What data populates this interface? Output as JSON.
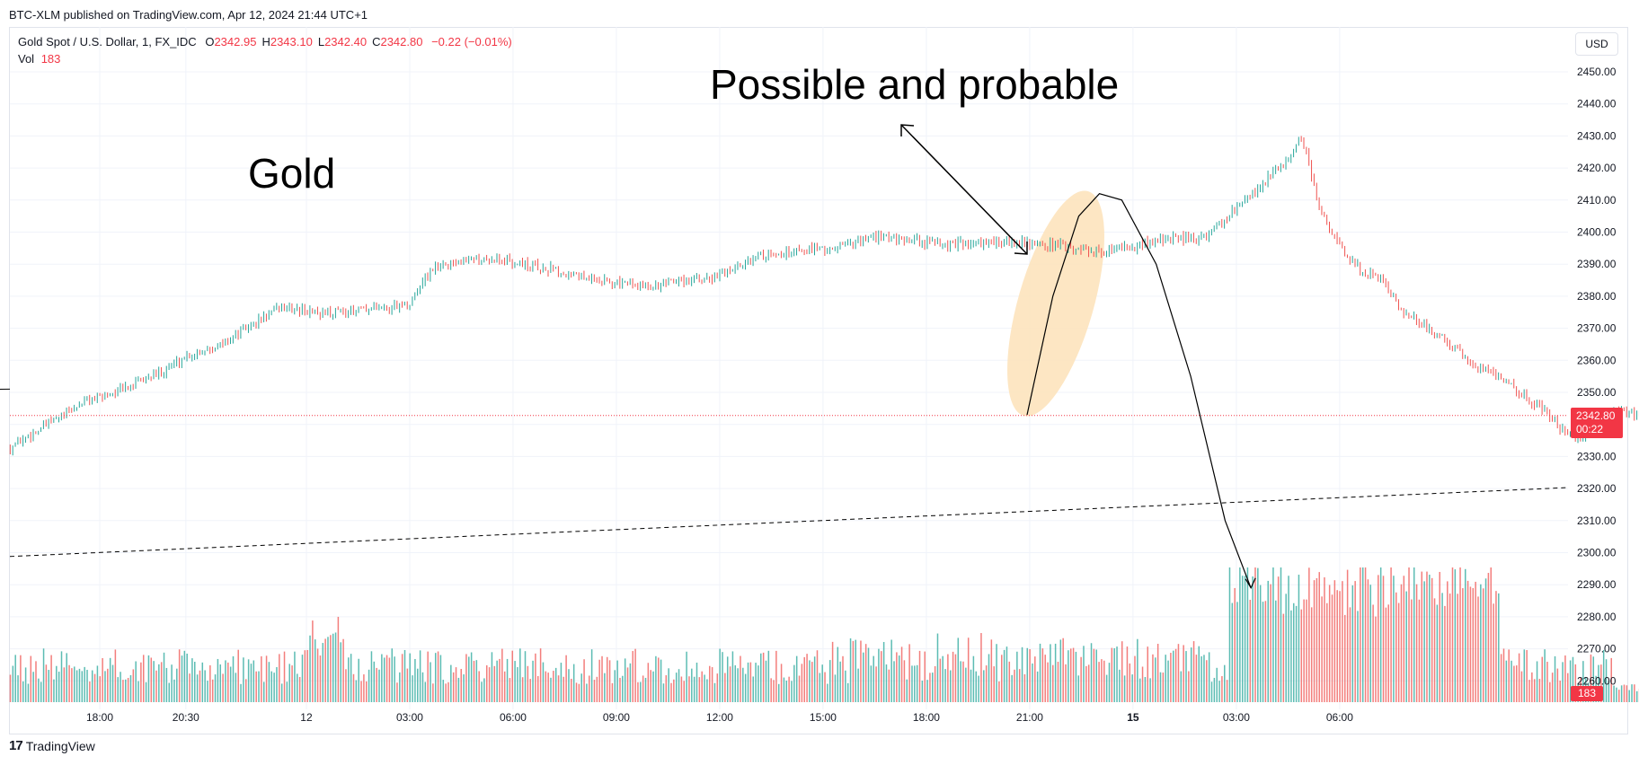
{
  "header": {
    "published_line": "BTC-XLM published on TradingView.com, Apr 12, 2024 21:44 UTC+1",
    "symbol_text": "Gold Spot / U.S. Dollar, 1, FX_IDC",
    "ohlc": [
      {
        "key": "O",
        "value": "2342.95"
      },
      {
        "key": "H",
        "value": "2343.10"
      },
      {
        "key": "L",
        "value": "2342.40"
      },
      {
        "key": "C",
        "value": "2342.80"
      }
    ],
    "change": "−0.22 (−0.01%)",
    "vol_label": "Vol",
    "vol_value": "183"
  },
  "currency_button": "USD",
  "price_tag": {
    "price": "2342.80",
    "countdown": "00:22"
  },
  "volume_tag": "183",
  "annotations": {
    "title": "Possible and probable",
    "label": "Gold"
  },
  "footer": {
    "brand_logo": "17",
    "brand_name": "TradingView"
  },
  "colors": {
    "up": "#26a69a",
    "down": "#ef5350",
    "price_tag": "#f23645",
    "last_price_line": "#f23645",
    "highlight": "#fde2b8"
  },
  "chart_data": {
    "type": "candlestick",
    "instrument": "Gold Spot / U.S. Dollar",
    "interval": "1",
    "y_axis": {
      "ticks": [
        "2260.00",
        "2270.00",
        "2280.00",
        "2290.00",
        "2300.00",
        "2310.00",
        "2320.00",
        "2330.00",
        "2340.00",
        "2350.00",
        "2360.00",
        "2370.00",
        "2380.00",
        "2390.00",
        "2400.00",
        "2410.00",
        "2420.00",
        "2430.00",
        "2440.00",
        "2450.00"
      ],
      "range": [
        2254,
        2456
      ]
    },
    "x_axis": {
      "ticks": [
        "18:00",
        "20:30",
        "12",
        "03:00",
        "06:00",
        "09:00",
        "12:00",
        "15:00",
        "18:00",
        "21:00",
        "15",
        "03:00",
        "06:00"
      ],
      "bold_ticks": [
        "15"
      ]
    },
    "price_path": [
      [
        0,
        2333
      ],
      [
        1.5,
        2340
      ],
      [
        3,
        2347
      ],
      [
        4.5,
        2351
      ],
      [
        6,
        2356
      ],
      [
        7,
        2361
      ],
      [
        8.5,
        2365
      ],
      [
        9.5,
        2370
      ],
      [
        11,
        2377
      ],
      [
        12,
        2375
      ],
      [
        13,
        2375
      ],
      [
        14.5,
        2376
      ],
      [
        16,
        2377
      ],
      [
        17,
        2389
      ],
      [
        18.5,
        2392
      ],
      [
        20,
        2391
      ],
      [
        21.5,
        2389
      ],
      [
        23,
        2386
      ],
      [
        24.5,
        2384
      ],
      [
        26,
        2383
      ],
      [
        27,
        2385
      ],
      [
        28.5,
        2386
      ],
      [
        30,
        2392
      ],
      [
        31.5,
        2394
      ],
      [
        33,
        2395
      ],
      [
        34.5,
        2398
      ],
      [
        36,
        2398
      ],
      [
        37.5,
        2396
      ],
      [
        39,
        2397
      ],
      [
        40.5,
        2397
      ],
      [
        42,
        2396
      ],
      [
        43.5,
        2394
      ],
      [
        45,
        2395
      ],
      [
        46.5,
        2398
      ],
      [
        48,
        2398
      ],
      [
        49.5,
        2408
      ],
      [
        50.5,
        2416
      ],
      [
        51.3,
        2421
      ],
      [
        52,
        2430
      ],
      [
        52.8,
        2405
      ],
      [
        53.6,
        2395
      ],
      [
        54.4,
        2388
      ],
      [
        55.2,
        2385
      ],
      [
        56,
        2376
      ],
      [
        57,
        2370
      ],
      [
        58,
        2365
      ],
      [
        59,
        2358
      ],
      [
        60,
        2355
      ],
      [
        61,
        2349
      ],
      [
        62,
        2343
      ],
      [
        62.6,
        2337
      ],
      [
        63.2,
        2336
      ],
      [
        64,
        2342
      ],
      [
        64.8,
        2345
      ],
      [
        65.5,
        2343
      ],
      [
        66,
        2342.8
      ]
    ],
    "last_price": 2342.8,
    "volume": {
      "last": 183
    },
    "drawings": {
      "horizontal_ray": {
        "from": [
          -5.4,
          2351
        ],
        "to": [
          3,
          2350.5
        ]
      },
      "dashed_trendline": {
        "from": [
          -5.4,
          2298.8
        ],
        "to": [
          94.5,
          2320.3
        ]
      },
      "projection_curve": [
        [
          66,
          2343
        ],
        [
          67.5,
          2380
        ],
        [
          69,
          2405
        ],
        [
          70.2,
          2412
        ],
        [
          71.5,
          2410
        ],
        [
          73.5,
          2390
        ],
        [
          75.5,
          2355
        ],
        [
          77.5,
          2310
        ],
        [
          79,
          2289
        ]
      ]
    },
    "grid": true,
    "legend_position": "top-left"
  }
}
